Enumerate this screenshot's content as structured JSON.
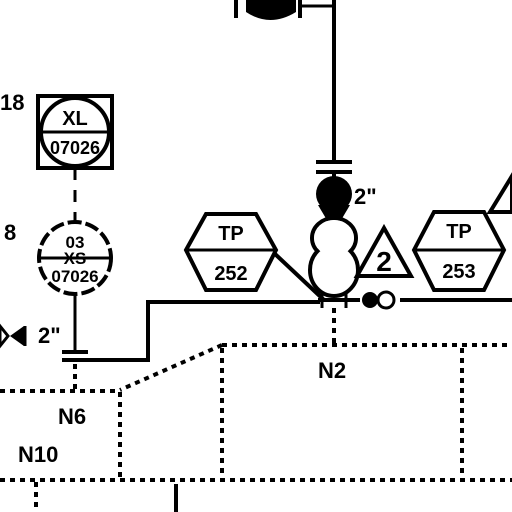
{
  "labels": {
    "left_18": "18",
    "left_8": "8",
    "pipe_size_left": "2\"",
    "pipe_size_center": "2\"",
    "node_n2": "N2",
    "node_n6": "N6",
    "node_n10": "N10"
  },
  "instruments": {
    "xl": {
      "tag": "XL",
      "number": "07026"
    },
    "xs": {
      "tag_top": "03",
      "tag": "XS",
      "number": "07026"
    }
  },
  "test_points": {
    "tp_252": {
      "tag": "TP",
      "number": "252"
    },
    "tp_253": {
      "tag": "TP",
      "number": "253"
    }
  },
  "notes": {
    "triangle_note": "2"
  }
}
